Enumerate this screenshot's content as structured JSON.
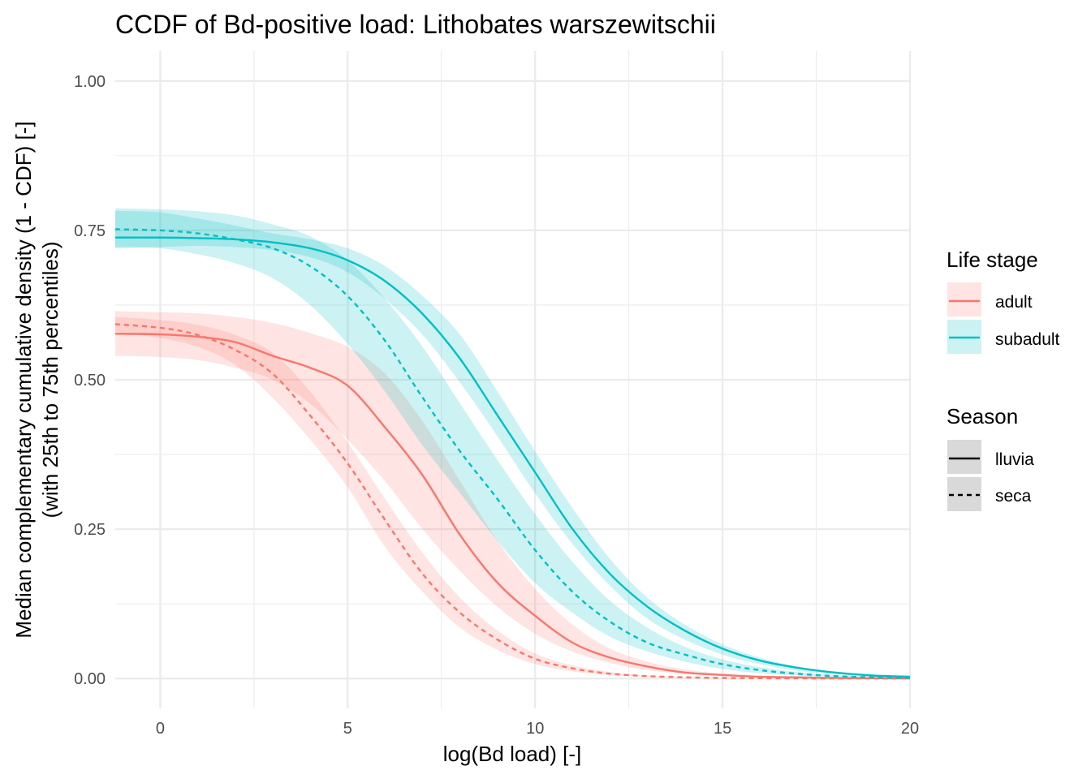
{
  "chart_data": {
    "type": "line",
    "title": "CCDF of Bd-positive load: Lithobates warszewitschii",
    "xlabel": "log(Bd load) [-]",
    "ylabel_line1": "Median complementary cumulative density (1 - CDF) [-]",
    "ylabel_line2": "(with 25th to 75th percentiles)",
    "xlim": [
      -1.2,
      20
    ],
    "ylim": [
      -0.05,
      1.05
    ],
    "x_ticks": [
      0,
      5,
      10,
      15,
      20
    ],
    "x_tick_labels": [
      "0",
      "5",
      "10",
      "15",
      "20"
    ],
    "y_ticks": [
      0,
      0.25,
      0.5,
      0.75,
      1
    ],
    "y_tick_labels": [
      "0.00",
      "0.25",
      "0.50",
      "0.75",
      "1.00"
    ],
    "x_minor": [
      2.5,
      7.5,
      12.5,
      17.5
    ],
    "y_minor": [
      0.125,
      0.375,
      0.625,
      0.875
    ],
    "grid": true,
    "legend_position": "right",
    "legend": {
      "color_title": "Life stage",
      "color_entries": [
        {
          "label": "adult",
          "color": "#F8766D"
        },
        {
          "label": "subadult",
          "color": "#00BFC4"
        }
      ],
      "linetype_title": "Season",
      "linetype_entries": [
        {
          "label": "lluvia",
          "dash": "solid"
        },
        {
          "label": "seca",
          "dash": "dashed"
        }
      ]
    },
    "x": [
      -1.2,
      0,
      1,
      2,
      3,
      4,
      5,
      6,
      7,
      8,
      9,
      10,
      11,
      12,
      13,
      14,
      15,
      16,
      17,
      18,
      19,
      20
    ],
    "series": [
      {
        "name": "adult",
        "season": "lluvia",
        "color": "#F8766D",
        "dash": "solid",
        "values": [
          0.577,
          0.576,
          0.572,
          0.563,
          0.54,
          0.52,
          0.49,
          0.42,
          0.34,
          0.24,
          0.16,
          0.105,
          0.06,
          0.035,
          0.02,
          0.01,
          0.006,
          0.003,
          0.002,
          0.001,
          0.0005,
          0.0002
        ],
        "lower": [
          0.54,
          0.538,
          0.533,
          0.52,
          0.5,
          0.46,
          0.4,
          0.33,
          0.25,
          0.18,
          0.12,
          0.075,
          0.045,
          0.026,
          0.014,
          0.008,
          0.004,
          0.002,
          0.001,
          0.0005,
          0.0002,
          0.0001
        ],
        "upper": [
          0.615,
          0.613,
          0.611,
          0.605,
          0.595,
          0.578,
          0.555,
          0.51,
          0.43,
          0.33,
          0.23,
          0.15,
          0.09,
          0.05,
          0.028,
          0.015,
          0.008,
          0.004,
          0.002,
          0.001,
          0.0005,
          0.0002
        ]
      },
      {
        "name": "adult",
        "season": "seca",
        "color": "#F8766D",
        "dash": "dashed",
        "values": [
          0.593,
          0.587,
          0.575,
          0.55,
          0.51,
          0.44,
          0.36,
          0.265,
          0.175,
          0.11,
          0.065,
          0.033,
          0.017,
          0.008,
          0.004,
          0.002,
          0.001,
          0.0005,
          0.0003,
          0.0002,
          0.0001,
          0.0001
        ],
        "lower": [
          0.58,
          0.57,
          0.555,
          0.525,
          0.47,
          0.4,
          0.32,
          0.22,
          0.145,
          0.085,
          0.048,
          0.024,
          0.012,
          0.006,
          0.003,
          0.0015,
          0.0008,
          0.0004,
          0.0002,
          0.0001,
          0.0001,
          0
        ],
        "upper": [
          0.605,
          0.6,
          0.592,
          0.575,
          0.545,
          0.48,
          0.395,
          0.3,
          0.21,
          0.135,
          0.08,
          0.042,
          0.022,
          0.011,
          0.005,
          0.0025,
          0.0012,
          0.0006,
          0.0003,
          0.0002,
          0.0001,
          0.0001
        ]
      },
      {
        "name": "subadult",
        "season": "lluvia",
        "color": "#00BFC4",
        "dash": "solid",
        "values": [
          0.738,
          0.738,
          0.737,
          0.735,
          0.73,
          0.72,
          0.7,
          0.665,
          0.61,
          0.535,
          0.44,
          0.345,
          0.25,
          0.175,
          0.12,
          0.08,
          0.05,
          0.03,
          0.018,
          0.01,
          0.005,
          0.003
        ],
        "lower": [
          0.72,
          0.722,
          0.724,
          0.722,
          0.717,
          0.705,
          0.68,
          0.635,
          0.575,
          0.495,
          0.405,
          0.31,
          0.225,
          0.155,
          0.1,
          0.065,
          0.04,
          0.024,
          0.013,
          0.007,
          0.004,
          0.002
        ],
        "upper": [
          0.783,
          0.78,
          0.77,
          0.758,
          0.745,
          0.735,
          0.72,
          0.69,
          0.64,
          0.575,
          0.48,
          0.38,
          0.285,
          0.2,
          0.135,
          0.09,
          0.057,
          0.035,
          0.02,
          0.011,
          0.006,
          0.003
        ]
      },
      {
        "name": "subadult",
        "season": "seca",
        "color": "#00BFC4",
        "dash": "dashed",
        "values": [
          0.752,
          0.75,
          0.745,
          0.735,
          0.72,
          0.69,
          0.64,
          0.565,
          0.47,
          0.38,
          0.3,
          0.215,
          0.145,
          0.095,
          0.06,
          0.04,
          0.024,
          0.014,
          0.008,
          0.004,
          0.002,
          0.001
        ],
        "lower": [
          0.722,
          0.72,
          0.71,
          0.695,
          0.67,
          0.625,
          0.56,
          0.48,
          0.39,
          0.31,
          0.23,
          0.16,
          0.11,
          0.07,
          0.045,
          0.028,
          0.016,
          0.009,
          0.005,
          0.003,
          0.0015,
          0.001
        ],
        "upper": [
          0.787,
          0.785,
          0.782,
          0.775,
          0.76,
          0.74,
          0.7,
          0.635,
          0.555,
          0.46,
          0.365,
          0.275,
          0.195,
          0.13,
          0.085,
          0.053,
          0.032,
          0.019,
          0.011,
          0.006,
          0.003,
          0.0015
        ]
      }
    ]
  }
}
